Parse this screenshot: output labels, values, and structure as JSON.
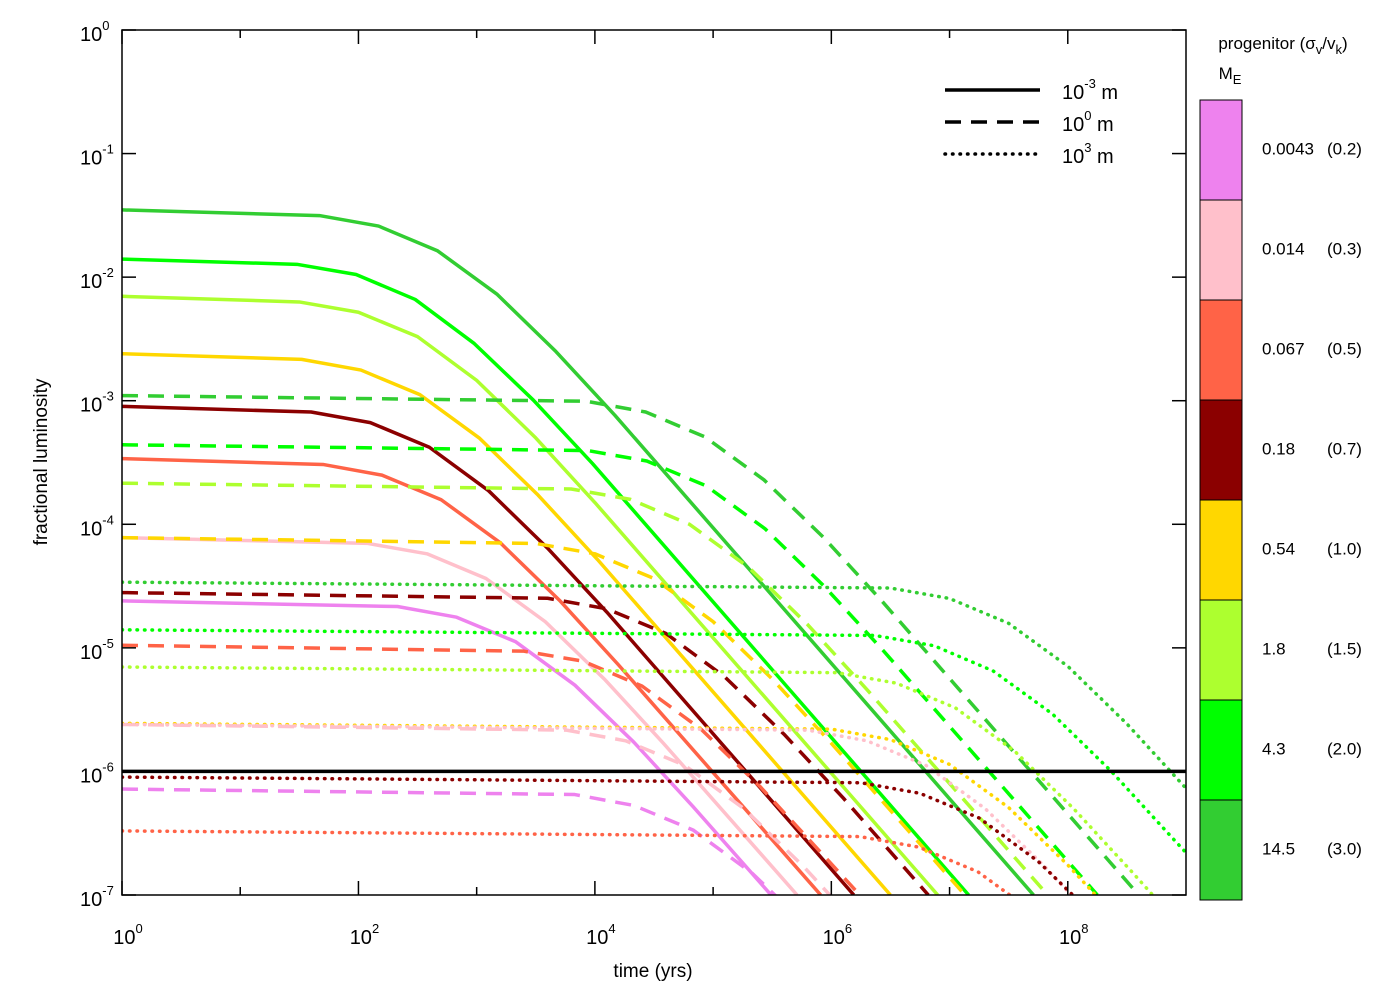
{
  "chart_data": {
    "type": "line",
    "x_label": "time (yrs)",
    "y_label": "fractional luminosity",
    "xlog": true,
    "ylog": true,
    "xlim": [
      1,
      1000000000
    ],
    "ylim": [
      1e-07,
      1
    ],
    "xticks": [
      {
        "value": 1,
        "label": "10",
        "exp": "0"
      },
      {
        "value": 100,
        "label": "10",
        "exp": "2"
      },
      {
        "value": 10000,
        "label": "10",
        "exp": "4"
      },
      {
        "value": 1000000,
        "label": "10",
        "exp": "6"
      },
      {
        "value": 100000000,
        "label": "10",
        "exp": "8"
      }
    ],
    "xminorticks": [
      10,
      1000,
      100000,
      10000000
    ],
    "yticks": [
      {
        "value": 1,
        "label": "10",
        "exp": "0"
      },
      {
        "value": 0.1,
        "label": "10",
        "exp": "-1"
      },
      {
        "value": 0.01,
        "label": "10",
        "exp": "-2"
      },
      {
        "value": 0.001,
        "label": "10",
        "exp": "-3"
      },
      {
        "value": 0.0001,
        "label": "10",
        "exp": "-4"
      },
      {
        "value": 1e-05,
        "label": "10",
        "exp": "-5"
      },
      {
        "value": 1e-06,
        "label": "10",
        "exp": "-6"
      },
      {
        "value": 1e-07,
        "label": "10",
        "exp": "-7"
      }
    ],
    "legend": [
      {
        "dash": "solid",
        "label": "10",
        "exp": "-3",
        "unit": "m"
      },
      {
        "dash": "dashed",
        "label": "10",
        "exp": "0",
        "unit": "m"
      },
      {
        "dash": "dotted",
        "label": "10",
        "exp": "3",
        "unit": "m"
      }
    ],
    "colorbar": {
      "title_parts": [
        {
          "text": "progenitor (σ"
        },
        {
          "text": "v",
          "sub": true
        },
        {
          "text": "/v"
        },
        {
          "text": "k",
          "sub": true
        },
        {
          "text": ")"
        }
      ],
      "mass_label": "M",
      "mass_sub": "E",
      "entries": [
        {
          "mass": 0.0043,
          "ratio": "(0.2)",
          "color": "#ee82ee"
        },
        {
          "mass": 0.014,
          "ratio": "(0.3)",
          "color": "#ffc0cb"
        },
        {
          "mass": 0.067,
          "ratio": "(0.5)",
          "color": "#ff6347"
        },
        {
          "mass": 0.18,
          "ratio": "(0.7)",
          "color": "#8b0000"
        },
        {
          "mass": 0.54,
          "ratio": "(1.0)",
          "color": "#ffd700"
        },
        {
          "mass": 1.8,
          "ratio": "(1.5)",
          "color": "#adff2f"
        },
        {
          "mass": 4.3,
          "ratio": "(2.0)",
          "color": "#00ff00"
        },
        {
          "mass": 14.5,
          "ratio": "(3.0)",
          "color": "#32cd32"
        }
      ]
    },
    "series": [
      {
        "color": "#32cd32",
        "dash": "solid",
        "x": [
          1,
          46.8,
          148,
          468,
          1480,
          4680,
          14800,
          51300000
        ],
        "values": [
          0.035,
          0.0315,
          0.0259,
          0.0163,
          0.0073,
          0.0025,
          0.00076,
          1e-07
        ]
      },
      {
        "color": "#00ff00",
        "dash": "solid",
        "x": [
          1,
          30.2,
          95.5,
          302,
          955,
          3020,
          9550,
          14500000
        ],
        "values": [
          0.014,
          0.0127,
          0.0105,
          0.0066,
          0.0029,
          0.00101,
          0.00031,
          1e-07
        ]
      },
      {
        "color": "#adff2f",
        "dash": "solid",
        "x": [
          1,
          31.6,
          100,
          316,
          1000,
          3160,
          10000,
          7940000
        ],
        "values": [
          0.007,
          0.0063,
          0.0052,
          0.0033,
          0.00146,
          0.0005,
          0.00015,
          1e-07
        ]
      },
      {
        "color": "#ffd700",
        "dash": "solid",
        "x": [
          1,
          33.1,
          105,
          331,
          1050,
          3310,
          10500,
          3160000
        ],
        "values": [
          0.0024,
          0.00216,
          0.00177,
          0.00112,
          0.0005,
          0.000172,
          5.2e-05,
          1e-07
        ]
      },
      {
        "color": "#8b0000",
        "dash": "solid",
        "x": [
          1,
          39.8,
          126,
          398,
          1260,
          3980,
          12600,
          1550000
        ],
        "values": [
          0.0009,
          0.00081,
          0.000665,
          0.00042,
          0.000187,
          6.4e-05,
          1.95e-05,
          1e-07
        ]
      },
      {
        "color": "#ff6347",
        "dash": "solid",
        "x": [
          1,
          50.1,
          158,
          501,
          1580,
          5010,
          15800,
          813000
        ],
        "values": [
          0.00034,
          0.000305,
          0.00025,
          0.000158,
          7.1e-05,
          2.43e-05,
          7.3e-06,
          1e-07
        ]
      },
      {
        "color": "#ffc0cb",
        "dash": "solid",
        "x": [
          1,
          120,
          380,
          1200,
          3800,
          12000,
          38000,
          513000
        ],
        "values": [
          7.8e-05,
          7e-05,
          5.77e-05,
          3.64e-05,
          1.63e-05,
          5.6e-06,
          1.69e-06,
          1e-07
        ]
      },
      {
        "color": "#ee82ee",
        "dash": "solid",
        "x": [
          1,
          214,
          676,
          2140,
          6760,
          21400,
          67600,
          309000
        ],
        "values": [
          2.4e-05,
          2.16e-05,
          1.77e-05,
          1.12e-05,
          5e-06,
          1.72e-06,
          5.2e-07,
          1e-07
        ]
      },
      {
        "color": "#32cd32",
        "dash": "dashed",
        "x": [
          1,
          8510,
          26900,
          85100,
          269000,
          851000,
          2690000,
          398000000
        ],
        "values": [
          0.0011,
          0.00099,
          0.00081,
          0.00051,
          0.000229,
          7.9e-05,
          2.38e-05,
          1e-07
        ]
      },
      {
        "color": "#00ff00",
        "dash": "dashed",
        "x": [
          1,
          8710,
          27500,
          87100,
          275000,
          871000,
          2750000,
          178000000
        ],
        "values": [
          0.00044,
          0.000395,
          0.000325,
          0.000205,
          9.2e-05,
          3.15e-05,
          9.5e-06,
          1e-07
        ]
      },
      {
        "color": "#adff2f",
        "dash": "dashed",
        "x": [
          1,
          6310,
          20000,
          63100,
          200000,
          631000,
          2000000,
          67600000
        ],
        "values": [
          0.000215,
          0.000193,
          0.000159,
          0.0001,
          4.48e-05,
          1.54e-05,
          4.6e-06,
          1e-07
        ]
      },
      {
        "color": "#ffd700",
        "dash": "dashed",
        "x": [
          1,
          3160,
          10000,
          31600,
          100000,
          316000,
          1000000,
          13500000
        ],
        "values": [
          7.8e-05,
          7e-05,
          5.77e-05,
          3.64e-05,
          1.63e-05,
          5.6e-06,
          1.69e-06,
          1e-07
        ]
      },
      {
        "color": "#8b0000",
        "dash": "dashed",
        "x": [
          1,
          3980,
          12600,
          39800,
          126000,
          398000,
          1260000,
          6610000
        ],
        "values": [
          2.8e-05,
          2.52e-05,
          2.07e-05,
          1.31e-05,
          5.8e-06,
          2e-06,
          6.1e-07,
          1e-07
        ]
      },
      {
        "color": "#ff6347",
        "dash": "dashed",
        "x": [
          1,
          2510,
          7940,
          25100,
          79400,
          251000,
          794000,
          1740000
        ],
        "values": [
          1.05e-05,
          9.4e-06,
          7.8e-06,
          4.9e-06,
          2.19e-06,
          7.5e-07,
          2.27e-07,
          1e-07
        ]
      },
      {
        "color": "#ffc0cb",
        "dash": "dashed",
        "x": [
          1,
          5750,
          18200,
          57500,
          182000,
          575000,
          1820000
        ],
        "values": [
          2.4e-06,
          2.16e-06,
          1.77e-06,
          1.12e-06,
          5e-07,
          1.72e-07,
          5.2e-08
        ]
      },
      {
        "color": "#ee82ee",
        "dash": "dashed",
        "x": [
          1,
          6760,
          21400,
          67600,
          214000,
          676000
        ],
        "values": [
          7.2e-07,
          6.5e-07,
          5.3e-07,
          3.36e-07,
          1.5e-07,
          5.2e-08
        ]
      },
      {
        "color": "#32cd32",
        "dash": "dotted",
        "x": [
          1,
          3160000,
          10000000,
          31600000,
          100000000,
          316000000,
          1000000000
        ],
        "values": [
          3.4e-05,
          3.05e-05,
          2.51e-05,
          1.58e-05,
          7.1e-06,
          2.43e-06,
          7.3e-07
        ]
      },
      {
        "color": "#00ff00",
        "dash": "dotted",
        "x": [
          1,
          2340000,
          7410000,
          23400000,
          74100000,
          234000000,
          741000000,
          1000000000
        ],
        "values": [
          1.4e-05,
          1.26e-05,
          1.04e-05,
          6.5e-06,
          2.92e-06,
          1e-06,
          3e-07,
          2.2e-07
        ]
      },
      {
        "color": "#adff2f",
        "dash": "dotted",
        "x": [
          1,
          1120000,
          3550000,
          11200000,
          35500000,
          112000000,
          355000000,
          1000000000
        ],
        "values": [
          7e-06,
          6.3e-06,
          5.18e-06,
          3.27e-06,
          1.46e-06,
          5e-07,
          1.51e-07,
          5e-08
        ]
      },
      {
        "color": "#ffd700",
        "dash": "dotted",
        "x": [
          1,
          1000000,
          3160000,
          10000000,
          31600000,
          100000000,
          316000000
        ],
        "values": [
          2.45e-06,
          2.2e-06,
          1.81e-06,
          1.14e-06,
          5.1e-07,
          1.75e-07,
          5.3e-08
        ]
      },
      {
        "color": "#ffc0cb",
        "dash": "dotted",
        "x": [
          1,
          631000,
          2000000,
          6310000,
          20000000,
          63100000,
          200000000
        ],
        "values": [
          2.4e-06,
          2.16e-06,
          1.77e-06,
          1.12e-06,
          5e-07,
          1.72e-07,
          5.2e-08
        ]
      },
      {
        "color": "#8b0000",
        "dash": "dotted",
        "x": [
          1,
          1780000,
          5620000,
          17800000,
          56200000,
          178000000
        ],
        "values": [
          9e-07,
          8.1e-07,
          6.65e-07,
          4.2e-07,
          1.87e-07,
          6.4e-08
        ]
      },
      {
        "color": "#ff6347",
        "dash": "dotted",
        "x": [
          1,
          1740000,
          5500000,
          17400000,
          55000000
        ],
        "values": [
          3.3e-07,
          2.97e-07,
          2.44e-07,
          1.54e-07,
          6.9e-08
        ]
      },
      {
        "color": "#000000",
        "dash": "solid",
        "x": [
          1,
          1000000000
        ],
        "values": [
          1e-06,
          1e-06
        ]
      }
    ]
  }
}
